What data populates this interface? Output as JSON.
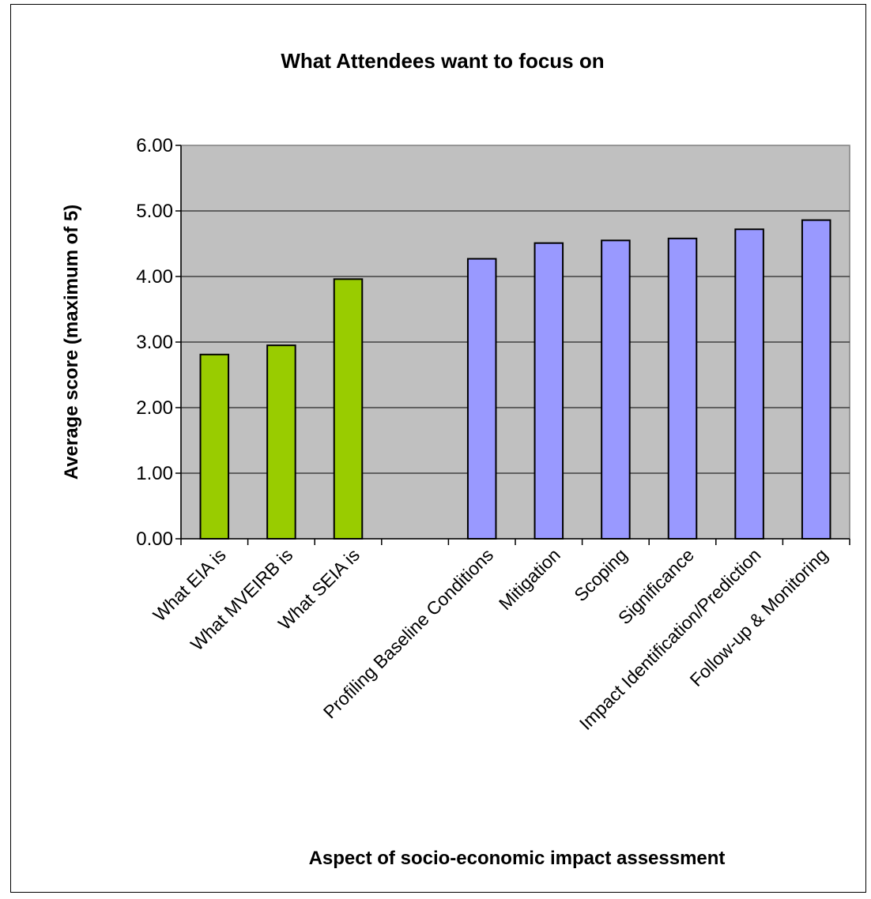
{
  "chart_data": {
    "type": "bar",
    "title": "What Attendees want to focus on",
    "xlabel": "Aspect of socio-economic impact assessment",
    "ylabel": "Average score (maximum of 5)",
    "ylim": [
      0,
      6
    ],
    "yticks": [
      "0.00",
      "1.00",
      "2.00",
      "3.00",
      "4.00",
      "5.00",
      "6.00"
    ],
    "grid": true,
    "legend": "none",
    "plot_background": "#c0c0c0",
    "categories": [
      "What EIA is",
      "What MVEIRB is",
      "What SEIA is",
      "",
      "Profiling Baseline Conditions",
      "Mitigation",
      "Scoping",
      "Significance",
      "Impact Identification/Prediction",
      "Follow-up & Monitoring"
    ],
    "values": [
      2.81,
      2.95,
      3.96,
      null,
      4.27,
      4.51,
      4.55,
      4.58,
      4.72,
      4.86
    ],
    "bar_colors": [
      "#99cc00",
      "#99cc00",
      "#99cc00",
      null,
      "#9999ff",
      "#9999ff",
      "#9999ff",
      "#9999ff",
      "#9999ff",
      "#9999ff"
    ]
  }
}
